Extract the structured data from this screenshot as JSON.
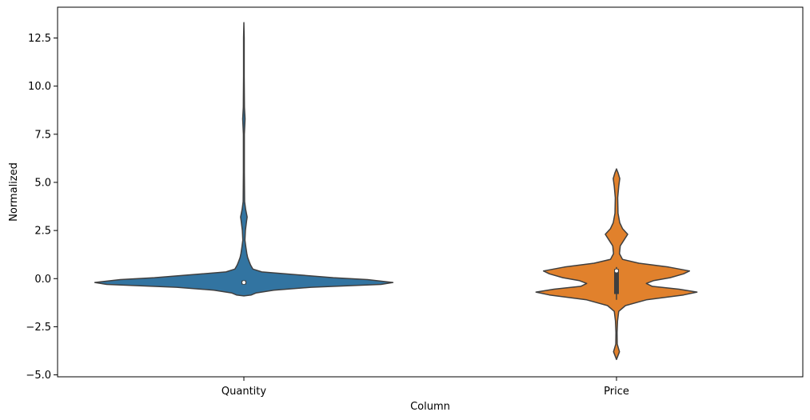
{
  "chart_data": {
    "type": "violin",
    "title": "",
    "xlabel": "Column",
    "ylabel": "Normalized",
    "categories": [
      "Quantity",
      "Price"
    ],
    "ylim": [
      -5.1,
      14.1
    ],
    "yticks": [
      -5.0,
      -2.5,
      0.0,
      2.5,
      5.0,
      7.5,
      10.0,
      12.5
    ],
    "ytick_labels": [
      "−5.0",
      "−2.5",
      "0.0",
      "2.5",
      "5.0",
      "7.5",
      "10.0",
      "12.5"
    ],
    "grid": false,
    "legend": "none",
    "series": [
      {
        "category": "Quantity",
        "color": "#3274a1",
        "median": -0.2,
        "q1": -0.3,
        "q3": -0.1,
        "density": [
          [
            -0.9,
            0.0
          ],
          [
            -0.85,
            0.05
          ],
          [
            -0.75,
            0.08
          ],
          [
            -0.6,
            0.2
          ],
          [
            -0.45,
            0.45
          ],
          [
            -0.3,
            0.92
          ],
          [
            -0.2,
            1.0
          ],
          [
            -0.05,
            0.83
          ],
          [
            0.05,
            0.6
          ],
          [
            0.2,
            0.36
          ],
          [
            0.35,
            0.12
          ],
          [
            0.5,
            0.06
          ],
          [
            0.7,
            0.045
          ],
          [
            0.9,
            0.035
          ],
          [
            1.1,
            0.025
          ],
          [
            1.3,
            0.02
          ],
          [
            1.6,
            0.014
          ],
          [
            2.0,
            0.007
          ],
          [
            2.5,
            0.01
          ],
          [
            3.0,
            0.018
          ],
          [
            3.2,
            0.022
          ],
          [
            3.6,
            0.012
          ],
          [
            4.0,
            0.005
          ],
          [
            5.5,
            0.003
          ],
          [
            7.5,
            0.003
          ],
          [
            8.3,
            0.008
          ],
          [
            8.9,
            0.004
          ],
          [
            10.5,
            0.002
          ],
          [
            12.5,
            0.002
          ],
          [
            13.3,
            0.0
          ]
        ]
      },
      {
        "category": "Price",
        "color": "#e1812c",
        "median": 0.4,
        "q1": -0.8,
        "q3": 0.5,
        "whisker_low": -1.1,
        "whisker_high": 0.6,
        "density": [
          [
            -4.2,
            0.0
          ],
          [
            -3.8,
            0.02
          ],
          [
            -3.4,
            0.005
          ],
          [
            -2.8,
            0.004
          ],
          [
            -2.2,
            0.007
          ],
          [
            -1.7,
            0.015
          ],
          [
            -1.4,
            0.06
          ],
          [
            -1.1,
            0.2
          ],
          [
            -0.85,
            0.45
          ],
          [
            -0.7,
            0.54
          ],
          [
            -0.55,
            0.42
          ],
          [
            -0.4,
            0.24
          ],
          [
            -0.25,
            0.2
          ],
          [
            -0.1,
            0.25
          ],
          [
            0.05,
            0.36
          ],
          [
            0.25,
            0.45
          ],
          [
            0.4,
            0.49
          ],
          [
            0.6,
            0.35
          ],
          [
            0.8,
            0.15
          ],
          [
            1.0,
            0.04
          ],
          [
            1.3,
            0.02
          ],
          [
            1.7,
            0.025
          ],
          [
            2.0,
            0.05
          ],
          [
            2.3,
            0.075
          ],
          [
            2.6,
            0.04
          ],
          [
            2.9,
            0.022
          ],
          [
            3.4,
            0.01
          ],
          [
            4.2,
            0.008
          ],
          [
            4.8,
            0.015
          ],
          [
            5.2,
            0.022
          ],
          [
            5.5,
            0.01
          ],
          [
            5.7,
            0.0
          ]
        ]
      }
    ]
  }
}
